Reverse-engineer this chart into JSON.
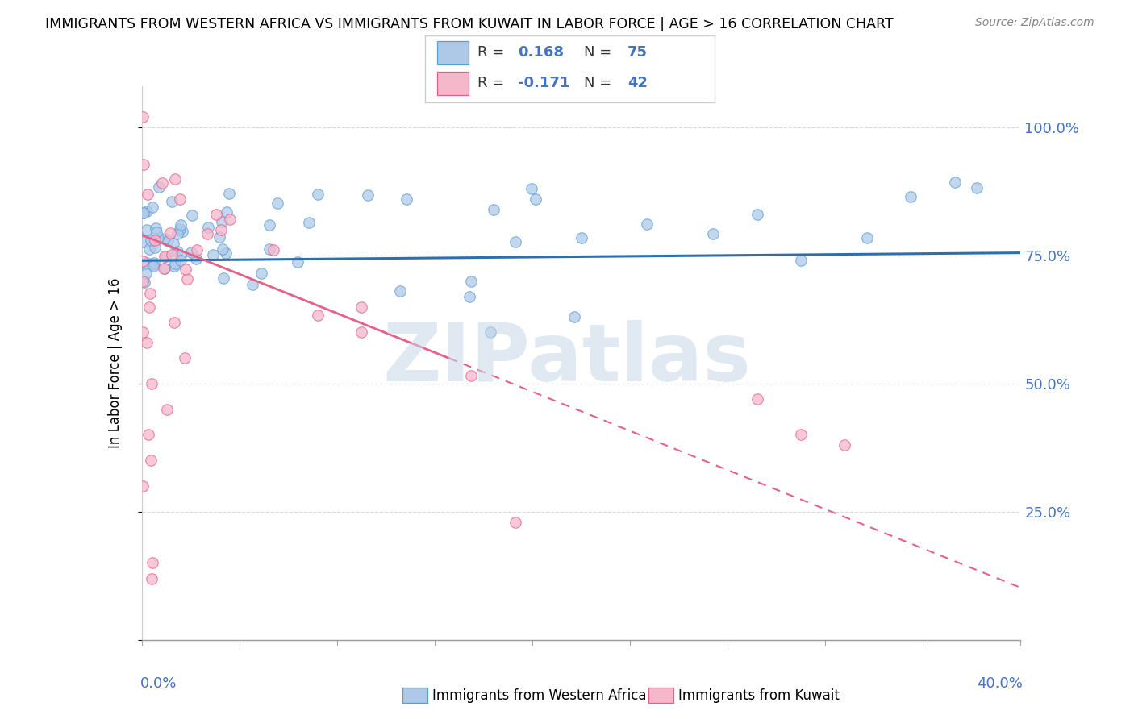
{
  "title": "IMMIGRANTS FROM WESTERN AFRICA VS IMMIGRANTS FROM KUWAIT IN LABOR FORCE | AGE > 16 CORRELATION CHART",
  "source": "Source: ZipAtlas.com",
  "ylabel": "In Labor Force | Age > 16",
  "y_ticks": [
    0.0,
    0.25,
    0.5,
    0.75,
    1.0
  ],
  "y_tick_labels": [
    "",
    "25.0%",
    "50.0%",
    "75.0%",
    "100.0%"
  ],
  "x_range": [
    0.0,
    0.4
  ],
  "y_range": [
    0.0,
    1.08
  ],
  "blue_R": 0.168,
  "blue_N": 75,
  "pink_R": -0.171,
  "pink_N": 42,
  "blue_dot_color": "#aec9e8",
  "pink_dot_color": "#f5b8cb",
  "blue_edge_color": "#5a9fd4",
  "pink_edge_color": "#e8608a",
  "blue_trend_color": "#2c6fad",
  "pink_trend_color": "#e8608a",
  "legend_label_blue": "Immigrants from Western Africa",
  "legend_label_pink": "Immigrants from Kuwait",
  "watermark": "ZIPatlas",
  "grid_color": "#d8d8d8",
  "axis_label_color": "#4472c4",
  "text_color_R_N": "#333333"
}
